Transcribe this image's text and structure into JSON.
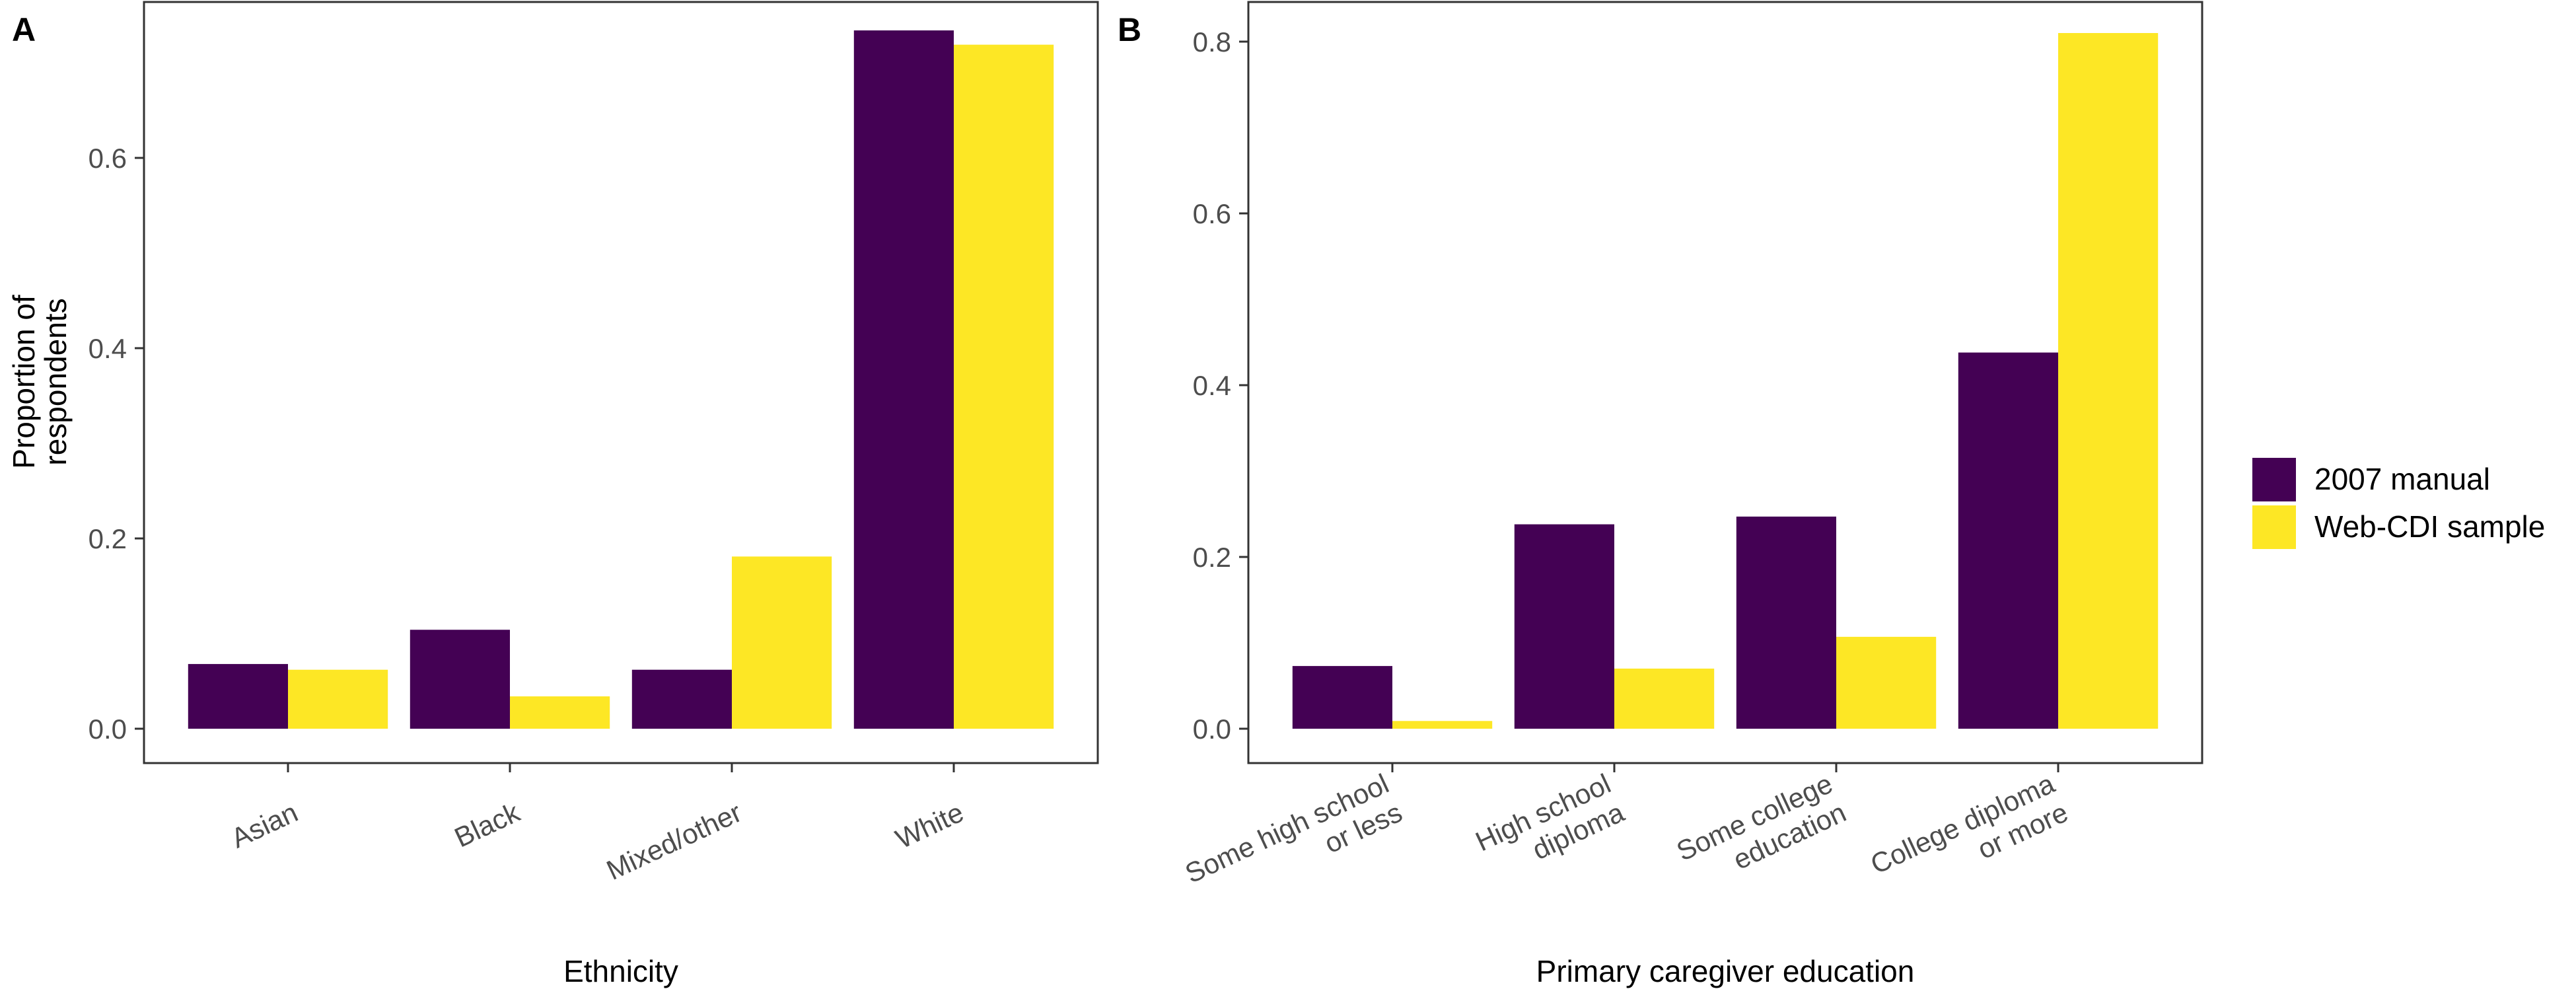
{
  "colors": {
    "manual": "#440154",
    "webcdi": "#FDE725",
    "frame": "#333333",
    "tick": "#4d4d4d"
  },
  "legend": {
    "items": [
      "2007 manual",
      "Web-CDI sample"
    ]
  },
  "chart_data": [
    {
      "tag": "A",
      "type": "bar",
      "xlabel": "Ethnicity",
      "ylabel": [
        "Proportion of",
        "respondents"
      ],
      "ylim": [
        0,
        0.8
      ],
      "yticks": [
        "0.0",
        "0.2",
        "0.4",
        "0.6"
      ],
      "categories": [
        [
          "Asian"
        ],
        [
          "Black"
        ],
        [
          "Mixed/other"
        ],
        [
          "White"
        ]
      ],
      "series": [
        {
          "name": "2007 manual",
          "values": [
            0.068,
            0.104,
            0.062,
            0.734
          ]
        },
        {
          "name": "Web-CDI sample",
          "values": [
            0.062,
            0.034,
            0.181,
            0.719
          ]
        }
      ]
    },
    {
      "tag": "B",
      "type": "bar",
      "xlabel": "Primary caregiver education",
      "ylabel": [],
      "ylim": [
        0,
        0.85
      ],
      "yticks": [
        "0.0",
        "0.2",
        "0.4",
        "0.6",
        "0.8"
      ],
      "categories": [
        [
          "Some high school",
          "or less"
        ],
        [
          "High school",
          "diploma"
        ],
        [
          "Some college",
          "education"
        ],
        [
          "College diploma",
          "or more"
        ]
      ],
      "series": [
        {
          "name": "2007 manual",
          "values": [
            0.073,
            0.238,
            0.247,
            0.438
          ]
        },
        {
          "name": "Web-CDI sample",
          "values": [
            0.009,
            0.07,
            0.107,
            0.81
          ]
        }
      ]
    }
  ]
}
